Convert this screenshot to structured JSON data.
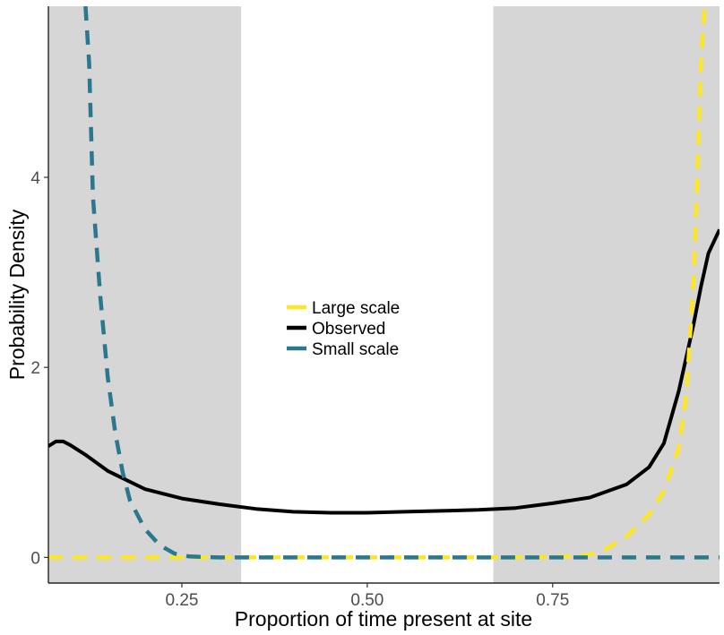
{
  "chart_data": {
    "type": "line",
    "title": "",
    "xlabel": "Proportion of time present at site",
    "ylabel": "Probability Density",
    "xlim": [
      0.07,
      0.975
    ],
    "ylim": [
      -0.27,
      5.8
    ],
    "x_ticks": [
      0.25,
      0.5,
      0.75
    ],
    "x_tick_labels": [
      "0.25",
      "0.50",
      "0.75"
    ],
    "y_ticks": [
      0,
      2,
      4
    ],
    "y_tick_labels": [
      "0",
      "2",
      "4"
    ],
    "grid": false,
    "legend_position": "center",
    "shaded_regions": [
      {
        "x_start": 0.07,
        "x_end": 0.33,
        "color": "#d6d6d6"
      },
      {
        "x_start": 0.67,
        "x_end": 0.975,
        "color": "#d6d6d6"
      }
    ],
    "series": [
      {
        "name": "Large scale",
        "color": "#fde725",
        "dash": "dashed",
        "x": [
          0.07,
          0.3,
          0.5,
          0.7,
          0.78,
          0.8,
          0.82,
          0.85,
          0.88,
          0.9,
          0.92,
          0.93,
          0.94,
          0.945,
          0.95,
          0.955
        ],
        "y": [
          0,
          0,
          0,
          0,
          0.01,
          0.03,
          0.08,
          0.22,
          0.45,
          0.7,
          1.15,
          1.7,
          2.9,
          4.0,
          5.2,
          5.8
        ]
      },
      {
        "name": "Observed",
        "color": "#000000",
        "dash": "solid",
        "x": [
          0.07,
          0.08,
          0.09,
          0.1,
          0.12,
          0.15,
          0.2,
          0.25,
          0.3,
          0.35,
          0.4,
          0.45,
          0.5,
          0.55,
          0.6,
          0.65,
          0.7,
          0.75,
          0.8,
          0.85,
          0.88,
          0.9,
          0.92,
          0.94,
          0.95,
          0.96,
          0.975
        ],
        "y": [
          1.17,
          1.22,
          1.22,
          1.18,
          1.08,
          0.91,
          0.72,
          0.62,
          0.56,
          0.51,
          0.48,
          0.47,
          0.47,
          0.48,
          0.49,
          0.5,
          0.52,
          0.57,
          0.63,
          0.77,
          0.95,
          1.2,
          1.75,
          2.45,
          2.85,
          3.2,
          3.45
        ]
      },
      {
        "name": "Small scale",
        "color": "#2a788e",
        "dash": "dashed",
        "x": [
          0.12,
          0.125,
          0.13,
          0.14,
          0.15,
          0.16,
          0.17,
          0.18,
          0.2,
          0.22,
          0.24,
          0.26,
          0.3,
          0.5,
          0.7,
          0.975
        ],
        "y": [
          5.8,
          5.2,
          3.8,
          2.75,
          1.9,
          1.32,
          0.9,
          0.6,
          0.3,
          0.13,
          0.04,
          0.01,
          0,
          0,
          0,
          0
        ]
      }
    ]
  }
}
